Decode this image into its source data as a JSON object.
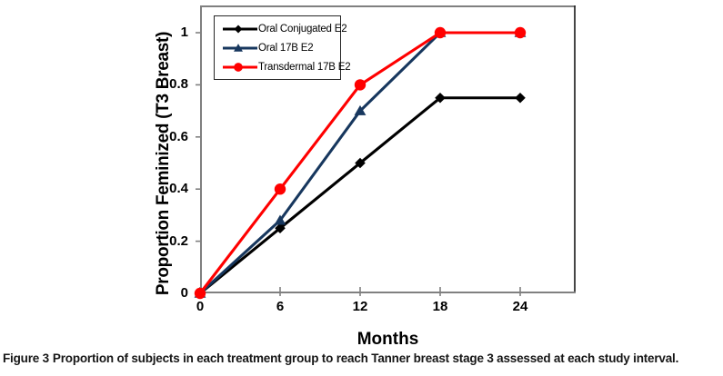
{
  "figure": {
    "caption_label": "Figure 3",
    "caption_text": "Proportion of subjects in each treatment group to reach Tanner breast stage 3 assessed at each study interval."
  },
  "chart_data": {
    "type": "line",
    "title": "",
    "xlabel": "Months",
    "ylabel": "Proportion Feminized (T3 Breast)",
    "x": [
      0,
      6,
      12,
      18,
      24
    ],
    "x_tick_labels": [
      "0",
      "6",
      "12",
      "18",
      "24"
    ],
    "y_tick_values": [
      0,
      0.2,
      0.4,
      0.6,
      0.8,
      1
    ],
    "y_tick_labels": [
      "0",
      "0.2",
      "0.4",
      "0.6",
      "0.8",
      "1"
    ],
    "xlim": [
      0,
      24
    ],
    "ylim": [
      0,
      1
    ],
    "grid": false,
    "legend_position": "top-left",
    "axis_color": "#808080",
    "border_color": "#262626",
    "series": [
      {
        "name": "Oral Conjugated E2",
        "marker": "diamond",
        "color": "#000000",
        "values": [
          0,
          0.25,
          0.5,
          0.75,
          0.75
        ]
      },
      {
        "name": "Oral 17B E2",
        "marker": "triangle",
        "color": "#17375E",
        "values": [
          0,
          0.28,
          0.7,
          1,
          1
        ]
      },
      {
        "name": "Transdermal 17B E2",
        "marker": "circle",
        "color": "#FF0000",
        "values": [
          0,
          0.4,
          0.8,
          1,
          1
        ]
      }
    ]
  }
}
